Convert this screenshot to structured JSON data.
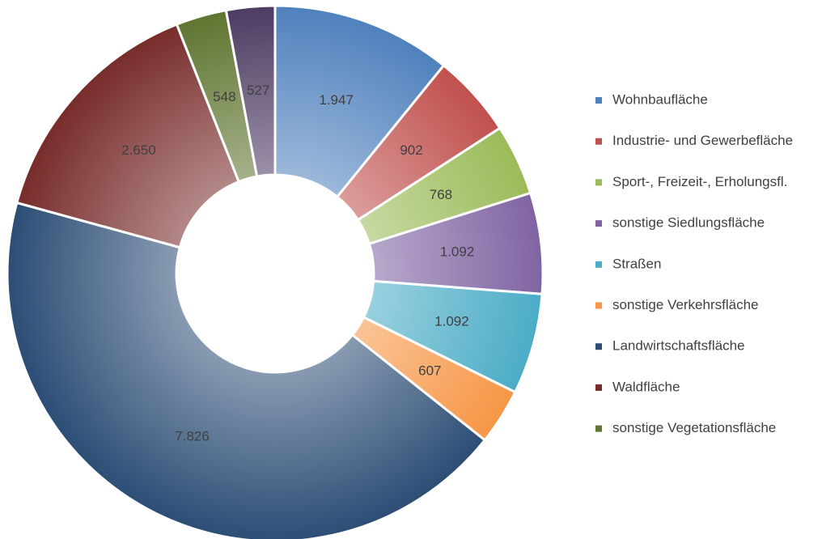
{
  "chart_data": {
    "type": "donut",
    "categories": [
      "Wohnbaufläche",
      "Industrie- und Gewerbefläche",
      "Sport-, Freizeit-, Erholungsfl.",
      "sonstige Siedlungsfläche",
      "Straßen",
      "sonstige Verkehrsfläche",
      "Landwirtschaftsfläche",
      "Waldfläche",
      "sonstige Vegetationsfläche",
      null
    ],
    "values": [
      1947,
      902,
      768,
      1092,
      1092,
      607,
      7826,
      2650,
      548,
      527
    ],
    "value_labels": [
      "1.947",
      "902",
      "768",
      "1.092",
      "1.092",
      "607",
      "7.826",
      "2.650",
      "548",
      "527"
    ],
    "colors": [
      "#4f81bd",
      "#c0504d",
      "#9bbb59",
      "#8064a2",
      "#4bacc6",
      "#f79646",
      "#2c4d75",
      "#772c2a",
      "#5f7530",
      "#4d3b62"
    ],
    "legend": "right"
  }
}
